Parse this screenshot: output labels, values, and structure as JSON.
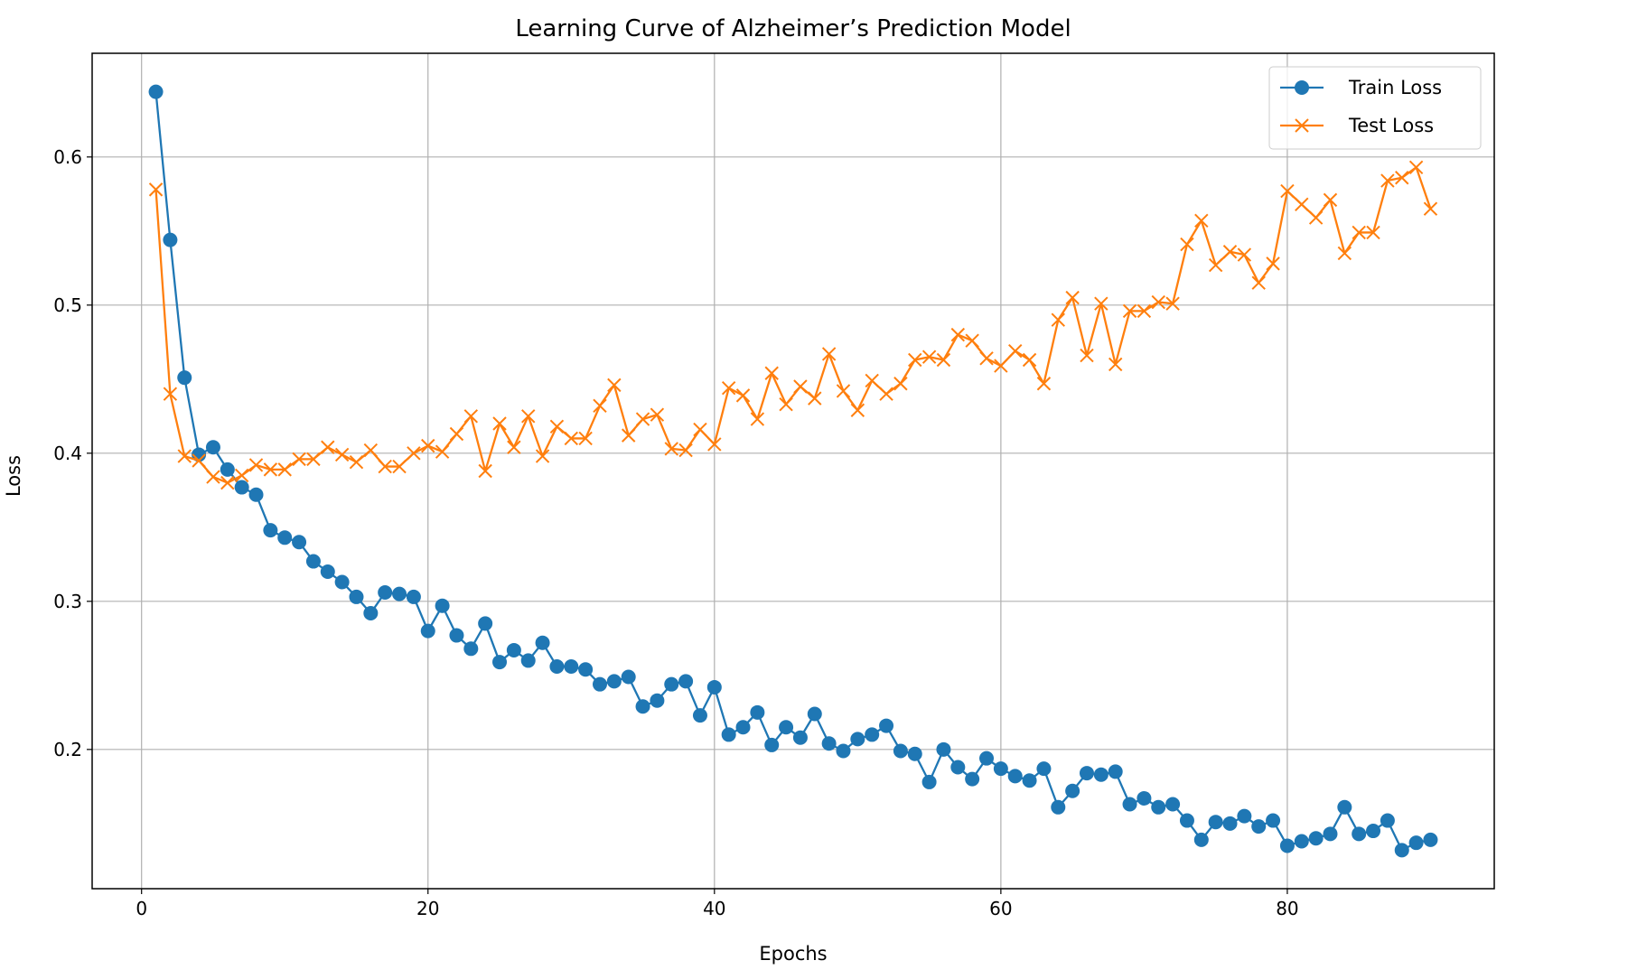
{
  "chart_data": {
    "type": "line",
    "title": "Learning Curve of Alzheimer’s Prediction Model",
    "xlabel": "Epochs",
    "ylabel": "Loss",
    "xlim": [
      -3.45,
      94.45
    ],
    "ylim": [
      0.106,
      0.67
    ],
    "xticks": [
      0,
      20,
      40,
      60,
      80
    ],
    "yticks": [
      0.2,
      0.3,
      0.4,
      0.5,
      0.6
    ],
    "xtick_labels": [
      "0",
      "20",
      "40",
      "60",
      "80"
    ],
    "ytick_labels": [
      "0.2",
      "0.3",
      "0.4",
      "0.5",
      "0.6"
    ],
    "grid": true,
    "legend_position": "top-right",
    "x": [
      1,
      2,
      3,
      4,
      5,
      6,
      7,
      8,
      9,
      10,
      11,
      12,
      13,
      14,
      15,
      16,
      17,
      18,
      19,
      20,
      21,
      22,
      23,
      24,
      25,
      26,
      27,
      28,
      29,
      30,
      31,
      32,
      33,
      34,
      35,
      36,
      37,
      38,
      39,
      40,
      41,
      42,
      43,
      44,
      45,
      46,
      47,
      48,
      49,
      50,
      51,
      52,
      53,
      54,
      55,
      56,
      57,
      58,
      59,
      60,
      61,
      62,
      63,
      64,
      65,
      66,
      67,
      68,
      69,
      70,
      71,
      72,
      73,
      74,
      75,
      76,
      77,
      78,
      79,
      80,
      81,
      82,
      83,
      84,
      85,
      86,
      87,
      88,
      89,
      90
    ],
    "series": [
      {
        "name": "Train Loss",
        "color": "#1f77b4",
        "marker": "circle",
        "values": [
          0.644,
          0.544,
          0.451,
          0.399,
          0.404,
          0.389,
          0.377,
          0.372,
          0.348,
          0.343,
          0.34,
          0.327,
          0.32,
          0.313,
          0.303,
          0.292,
          0.306,
          0.305,
          0.303,
          0.28,
          0.297,
          0.277,
          0.268,
          0.285,
          0.259,
          0.267,
          0.26,
          0.272,
          0.256,
          0.256,
          0.254,
          0.244,
          0.246,
          0.249,
          0.229,
          0.233,
          0.244,
          0.246,
          0.223,
          0.242,
          0.21,
          0.215,
          0.225,
          0.203,
          0.215,
          0.208,
          0.224,
          0.204,
          0.199,
          0.207,
          0.21,
          0.216,
          0.199,
          0.197,
          0.178,
          0.2,
          0.188,
          0.18,
          0.194,
          0.187,
          0.182,
          0.179,
          0.187,
          0.161,
          0.172,
          0.184,
          0.183,
          0.185,
          0.163,
          0.167,
          0.161,
          0.163,
          0.152,
          0.139,
          0.151,
          0.15,
          0.155,
          0.148,
          0.152,
          0.135,
          0.138,
          0.14,
          0.143,
          0.161,
          0.143,
          0.145,
          0.152,
          0.132,
          0.137,
          0.139
        ]
      },
      {
        "name": "Test Loss",
        "color": "#ff7f0e",
        "marker": "x",
        "values": [
          0.578,
          0.44,
          0.398,
          0.395,
          0.384,
          0.38,
          0.385,
          0.392,
          0.389,
          0.389,
          0.396,
          0.396,
          0.404,
          0.399,
          0.394,
          0.402,
          0.391,
          0.391,
          0.4,
          0.405,
          0.401,
          0.413,
          0.425,
          0.388,
          0.42,
          0.404,
          0.425,
          0.398,
          0.418,
          0.41,
          0.41,
          0.432,
          0.446,
          0.412,
          0.423,
          0.426,
          0.403,
          0.402,
          0.416,
          0.406,
          0.444,
          0.439,
          0.423,
          0.454,
          0.433,
          0.445,
          0.437,
          0.467,
          0.442,
          0.429,
          0.449,
          0.44,
          0.447,
          0.463,
          0.465,
          0.463,
          0.48,
          0.476,
          0.464,
          0.459,
          0.469,
          0.463,
          0.447,
          0.49,
          0.505,
          0.466,
          0.501,
          0.46,
          0.496,
          0.496,
          0.502,
          0.501,
          0.541,
          0.557,
          0.527,
          0.536,
          0.534,
          0.515,
          0.528,
          0.577,
          0.568,
          0.559,
          0.571,
          0.535,
          0.549,
          0.549,
          0.584,
          0.586,
          0.593,
          0.565
        ]
      }
    ]
  }
}
